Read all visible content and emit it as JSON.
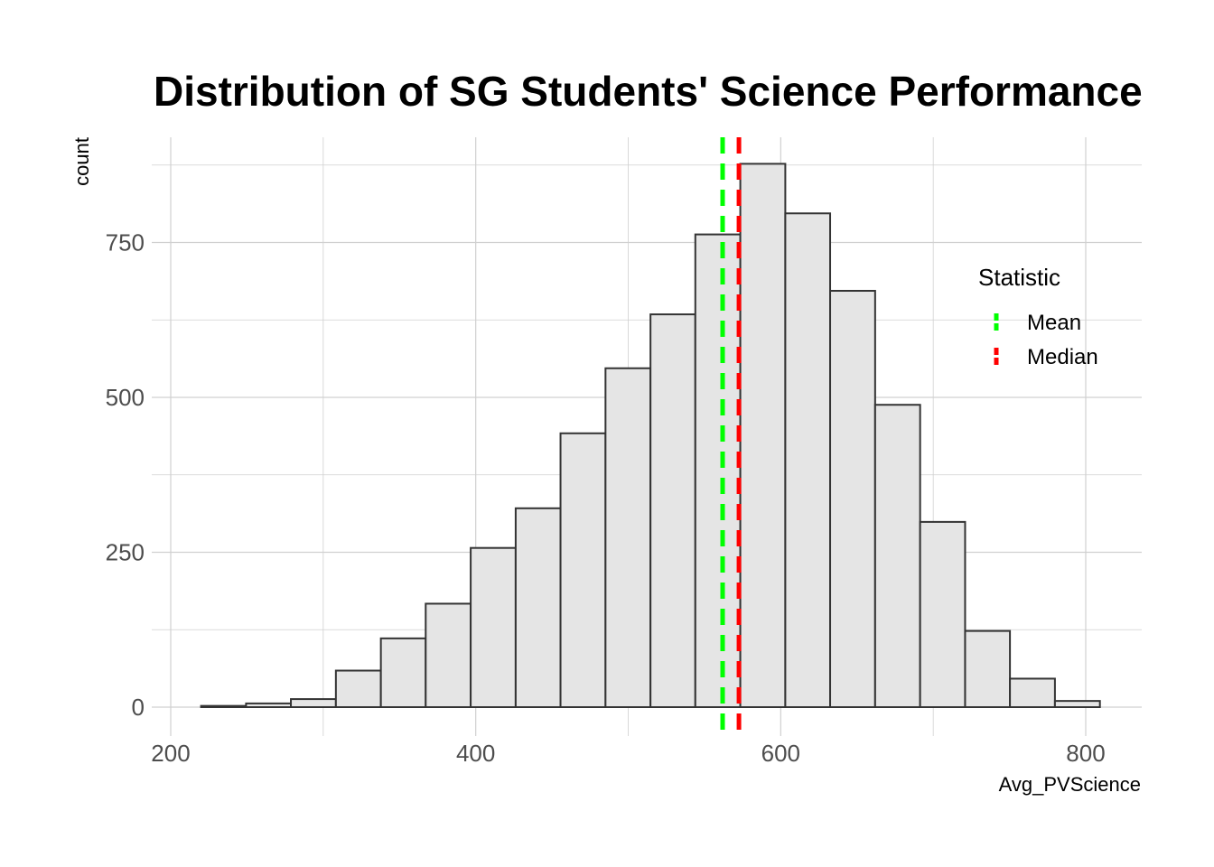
{
  "chart_data": {
    "type": "bar",
    "subtype": "histogram",
    "title": "Distribution of SG Students' Science Performance",
    "xlabel": "Avg_PVScience",
    "ylabel": "count",
    "xlim": [
      200,
      830
    ],
    "ylim": [
      0,
      880
    ],
    "x_ticks": [
      200,
      400,
      600,
      800
    ],
    "y_ticks": [
      0,
      250,
      500,
      750
    ],
    "bins": [
      {
        "x0": 219.9,
        "x1": 249.4,
        "count": 2
      },
      {
        "x0": 249.4,
        "x1": 278.8,
        "count": 6
      },
      {
        "x0": 278.8,
        "x1": 308.3,
        "count": 13
      },
      {
        "x0": 308.3,
        "x1": 337.8,
        "count": 59
      },
      {
        "x0": 337.8,
        "x1": 367.2,
        "count": 111
      },
      {
        "x0": 367.2,
        "x1": 396.7,
        "count": 167
      },
      {
        "x0": 396.7,
        "x1": 426.2,
        "count": 257
      },
      {
        "x0": 426.2,
        "x1": 455.6,
        "count": 321
      },
      {
        "x0": 455.6,
        "x1": 485.1,
        "count": 442
      },
      {
        "x0": 485.1,
        "x1": 514.6,
        "count": 547
      },
      {
        "x0": 514.6,
        "x1": 544.0,
        "count": 634
      },
      {
        "x0": 544.0,
        "x1": 573.5,
        "count": 763
      },
      {
        "x0": 573.5,
        "x1": 603.0,
        "count": 877
      },
      {
        "x0": 603.0,
        "x1": 632.4,
        "count": 797
      },
      {
        "x0": 632.4,
        "x1": 661.9,
        "count": 672
      },
      {
        "x0": 661.9,
        "x1": 691.4,
        "count": 488
      },
      {
        "x0": 691.4,
        "x1": 720.9,
        "count": 299
      },
      {
        "x0": 720.9,
        "x1": 750.3,
        "count": 123
      },
      {
        "x0": 750.3,
        "x1": 779.8,
        "count": 46
      },
      {
        "x0": 779.8,
        "x1": 809.3,
        "count": 10
      }
    ],
    "bar_fill": "#e5e5e5",
    "bar_stroke": "#333333",
    "reference_lines": [
      {
        "name": "Mean",
        "value": 561.9,
        "color": "#00ff00",
        "style": "dashed"
      },
      {
        "name": "Median",
        "value": 572.6,
        "color": "#ff0000",
        "style": "dashed"
      }
    ],
    "legend": {
      "title": "Statistic",
      "placement": "right",
      "items": [
        {
          "label": "Mean",
          "color": "#00ff00"
        },
        {
          "label": "Median",
          "color": "#ff0000"
        }
      ]
    },
    "grid": true,
    "theme": "minimal"
  }
}
